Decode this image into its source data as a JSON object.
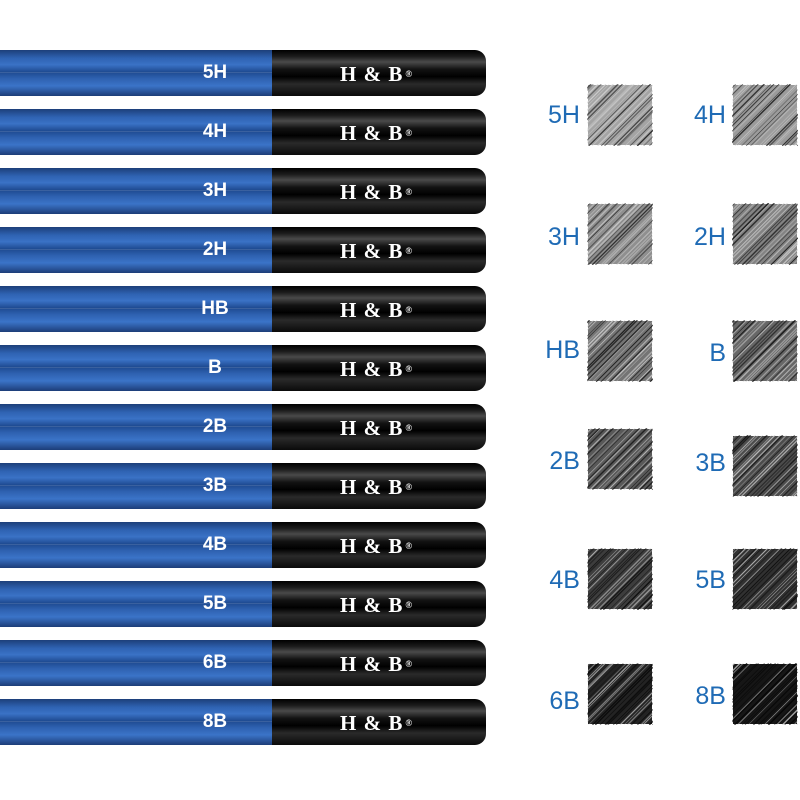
{
  "pencils": [
    {
      "grade": "5H",
      "brand": "H & B",
      "reg": "®"
    },
    {
      "grade": "4H",
      "brand": "H & B",
      "reg": "®"
    },
    {
      "grade": "3H",
      "brand": "H & B",
      "reg": "®"
    },
    {
      "grade": "2H",
      "brand": "H & B",
      "reg": "®"
    },
    {
      "grade": "HB",
      "brand": "H & B",
      "reg": "®"
    },
    {
      "grade": "B",
      "brand": "H & B",
      "reg": "®"
    },
    {
      "grade": "2B",
      "brand": "H & B",
      "reg": "®"
    },
    {
      "grade": "3B",
      "brand": "H & B",
      "reg": "®"
    },
    {
      "grade": "4B",
      "brand": "H & B",
      "reg": "®"
    },
    {
      "grade": "5B",
      "brand": "H & B",
      "reg": "®"
    },
    {
      "grade": "6B",
      "brand": "H & B",
      "reg": "®"
    },
    {
      "grade": "8B",
      "brand": "H & B",
      "reg": "®"
    }
  ],
  "swatches": [
    {
      "grade": "5H",
      "shade": "#5a5a5a"
    },
    {
      "grade": "4H",
      "shade": "#545454"
    },
    {
      "grade": "3H",
      "shade": "#4a4a4a"
    },
    {
      "grade": "2H",
      "shade": "#414141"
    },
    {
      "grade": "HB",
      "shade": "#363636"
    },
    {
      "grade": "B",
      "shade": "#2e2e2e"
    },
    {
      "grade": "2B",
      "shade": "#252525"
    },
    {
      "grade": "3B",
      "shade": "#1e1e1e"
    },
    {
      "grade": "4B",
      "shade": "#161616"
    },
    {
      "grade": "5B",
      "shade": "#111111"
    },
    {
      "grade": "6B",
      "shade": "#0b0b0b"
    },
    {
      "grade": "8B",
      "shade": "#050505"
    }
  ],
  "colors": {
    "label_blue": "#1f6bb5",
    "barrel_blue": "#2f63b3",
    "cap_black": "#000000"
  }
}
